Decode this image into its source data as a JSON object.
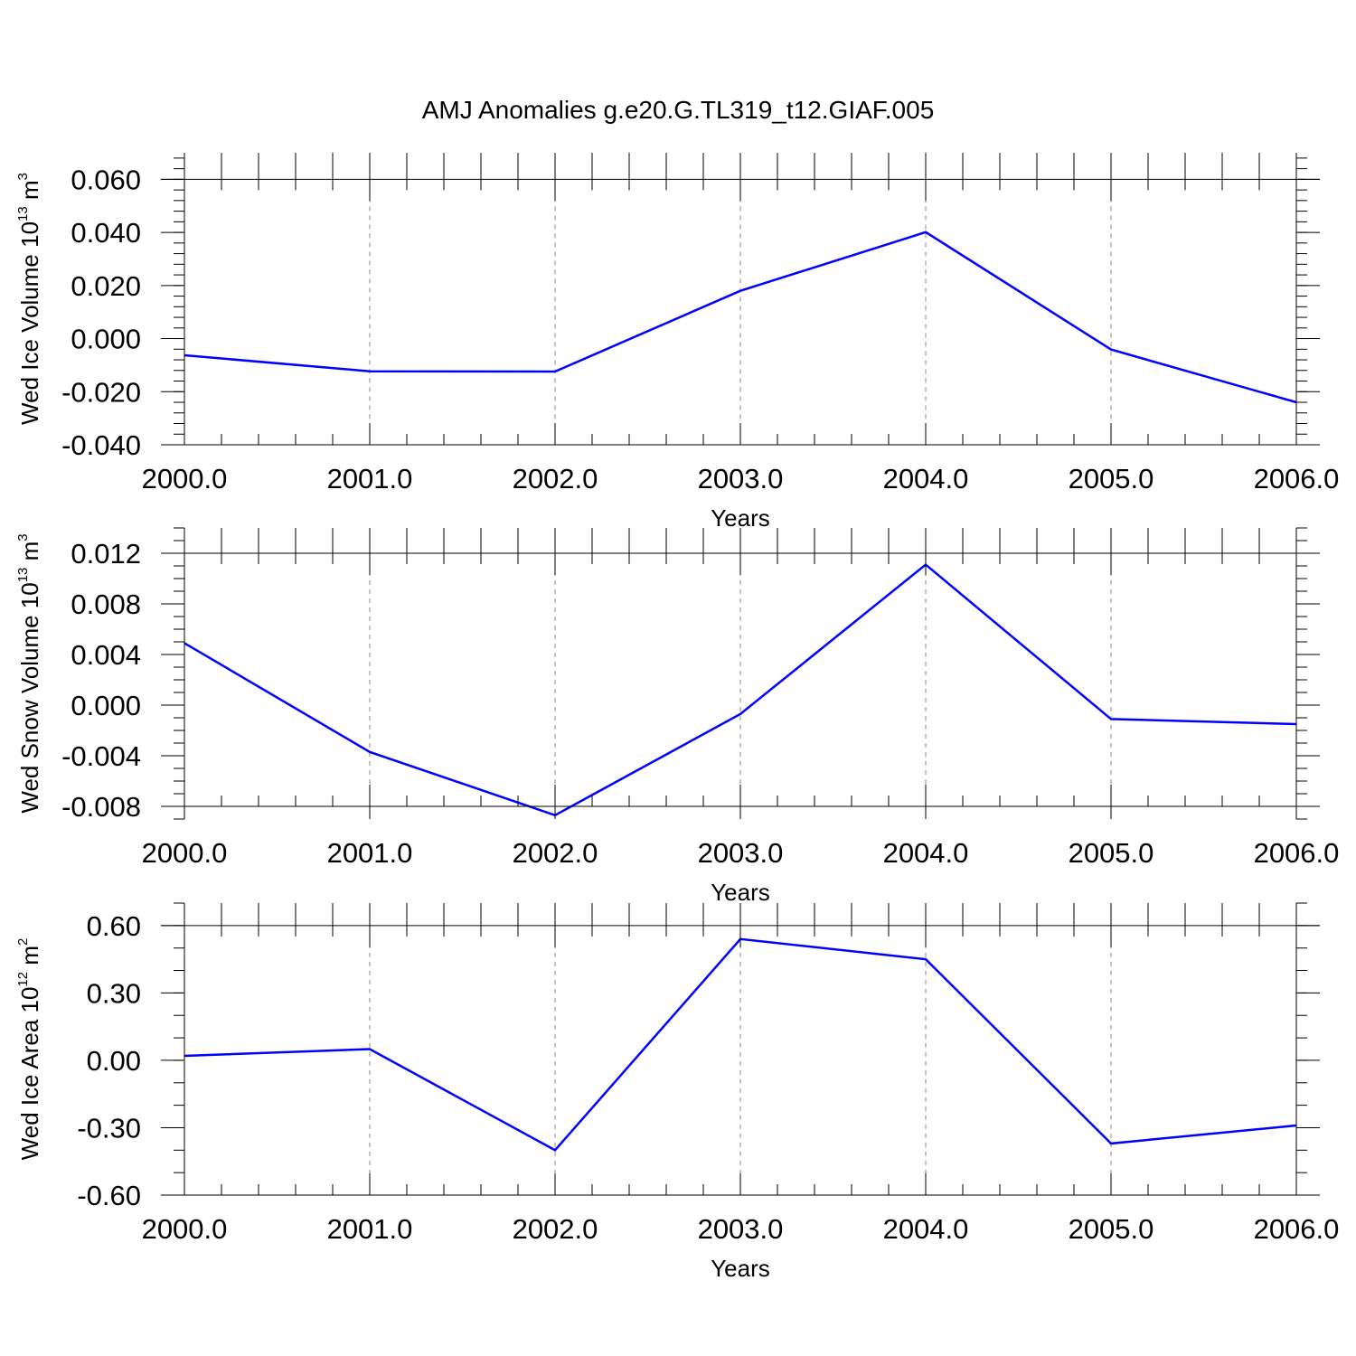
{
  "page_title": "AMJ Anomalies g.e20.G.TL319_t12.GIAF.005",
  "line_color": "#0000ff",
  "chart_data": [
    {
      "type": "line",
      "xlabel": "Years",
      "ylabel": {
        "prefix": "Wed Ice Volume 10",
        "exp": "13",
        "unit": " m",
        "unit_exp": "3"
      },
      "xlim": [
        2000,
        2006
      ],
      "ylim": [
        -0.04,
        0.07
      ],
      "x_ticks": [
        2000,
        2001,
        2002,
        2003,
        2004,
        2005,
        2006
      ],
      "x_tick_labels": [
        "2000.0",
        "2001.0",
        "2002.0",
        "2003.0",
        "2004.0",
        "2005.0",
        "2006.0"
      ],
      "y_ticks": [
        -0.04,
        -0.02,
        0.0,
        0.02,
        0.04,
        0.06
      ],
      "y_tick_labels": [
        "-0.040",
        "-0.020",
        "0.000",
        "0.020",
        "0.040",
        "0.060"
      ],
      "y_minor_step": 0.004,
      "x": [
        2000,
        2001,
        2002,
        2003,
        2004,
        2005,
        2006
      ],
      "values": [
        -0.0063,
        -0.0123,
        -0.0124,
        0.018,
        0.0401,
        -0.0041,
        -0.024
      ]
    },
    {
      "type": "line",
      "xlabel": "Years",
      "ylabel": {
        "prefix": "Wed Snow Volume 10",
        "exp": "13",
        "unit": " m",
        "unit_exp": "3"
      },
      "xlim": [
        2000,
        2006
      ],
      "ylim": [
        -0.009,
        0.014
      ],
      "x_ticks": [
        2000,
        2001,
        2002,
        2003,
        2004,
        2005,
        2006
      ],
      "x_tick_labels": [
        "2000.0",
        "2001.0",
        "2002.0",
        "2003.0",
        "2004.0",
        "2005.0",
        "2006.0"
      ],
      "y_ticks": [
        -0.008,
        -0.004,
        0.0,
        0.004,
        0.008,
        0.012
      ],
      "y_tick_labels": [
        "-0.008",
        "-0.004",
        "0.000",
        "0.004",
        "0.008",
        "0.012"
      ],
      "y_minor_step": 0.001,
      "x": [
        2000,
        2001,
        2002,
        2003,
        2004,
        2005,
        2006
      ],
      "values": [
        0.0049,
        -0.0037,
        -0.0087,
        -0.0007,
        0.0111,
        -0.0011,
        -0.0015
      ]
    },
    {
      "type": "line",
      "xlabel": "Years",
      "ylabel": {
        "prefix": "Wed Ice Area 10",
        "exp": "12",
        "unit": " m",
        "unit_exp": "2"
      },
      "xlim": [
        2000,
        2006
      ],
      "ylim": [
        -0.6,
        0.7
      ],
      "x_ticks": [
        2000,
        2001,
        2002,
        2003,
        2004,
        2005,
        2006
      ],
      "x_tick_labels": [
        "2000.0",
        "2001.0",
        "2002.0",
        "2003.0",
        "2004.0",
        "2005.0",
        "2006.0"
      ],
      "y_ticks": [
        -0.6,
        -0.3,
        0.0,
        0.3,
        0.6
      ],
      "y_tick_labels": [
        "-0.60",
        "-0.30",
        "0.00",
        "0.30",
        "0.60"
      ],
      "y_minor_step": 0.1,
      "x": [
        2000,
        2001,
        2002,
        2003,
        2004,
        2005,
        2006
      ],
      "values": [
        0.02,
        0.05,
        -0.4,
        0.54,
        0.45,
        -0.37,
        -0.29
      ]
    }
  ]
}
